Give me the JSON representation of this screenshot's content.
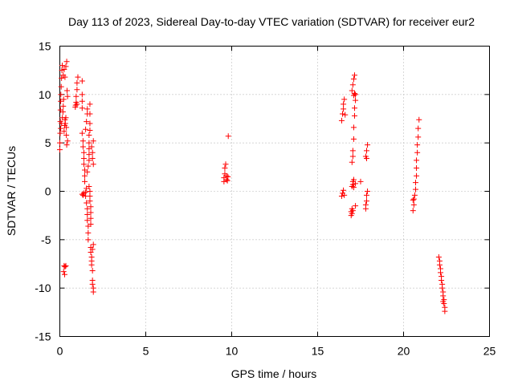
{
  "chart_data": {
    "type": "scatter",
    "title": "Day 113 of 2023, Sidereal Day-to-day VTEC variation (SDTVAR) for receiver eur2",
    "xlabel": "GPS time / hours",
    "ylabel": "SDTVAR / TECUs",
    "xlim": [
      0,
      25
    ],
    "ylim": [
      -15,
      15
    ],
    "x_ticks": [
      0,
      5,
      10,
      15,
      20,
      25
    ],
    "x_tick_labels": [
      "0",
      "5",
      "10",
      "15",
      "20",
      "25"
    ],
    "y_ticks": [
      -15,
      -10,
      -5,
      0,
      5,
      10,
      15
    ],
    "y_tick_labels": [
      "-15",
      "-10",
      "-5",
      "0",
      "5",
      "10",
      "15"
    ],
    "grid": true,
    "marker": "+",
    "color": "#ff0000",
    "series": [
      {
        "name": "eur2",
        "points": [
          [
            0.0,
            4.3
          ],
          [
            0.0,
            5.0
          ],
          [
            0.02,
            6.0
          ],
          [
            0.03,
            7.2
          ],
          [
            0.04,
            8.4
          ],
          [
            0.05,
            9.3
          ],
          [
            0.06,
            10.0
          ],
          [
            0.08,
            10.8
          ],
          [
            0.1,
            11.7
          ],
          [
            0.12,
            12.5
          ],
          [
            0.14,
            13.0
          ],
          [
            0.05,
            6.5
          ],
          [
            0.1,
            7.0
          ],
          [
            0.15,
            7.6
          ],
          [
            0.18,
            8.2
          ],
          [
            0.2,
            8.8
          ],
          [
            0.22,
            9.5
          ],
          [
            0.25,
            6.2
          ],
          [
            0.28,
            6.8
          ],
          [
            0.3,
            7.4
          ],
          [
            0.32,
            7.0
          ],
          [
            0.35,
            7.6
          ],
          [
            0.38,
            6.6
          ],
          [
            0.2,
            12.0
          ],
          [
            0.25,
            12.6
          ],
          [
            0.3,
            11.8
          ],
          [
            0.35,
            12.9
          ],
          [
            0.4,
            13.4
          ],
          [
            0.42,
            10.4
          ],
          [
            0.45,
            9.8
          ],
          [
            0.4,
            4.8
          ],
          [
            0.45,
            5.2
          ],
          [
            0.38,
            5.8
          ],
          [
            0.25,
            -7.7
          ],
          [
            0.3,
            -7.8
          ],
          [
            0.35,
            -7.7
          ],
          [
            0.22,
            -8.3
          ],
          [
            0.28,
            -8.6
          ],
          [
            0.9,
            8.7
          ],
          [
            0.95,
            9.2
          ],
          [
            0.95,
            9.8
          ],
          [
            1.0,
            10.5
          ],
          [
            1.0,
            11.2
          ],
          [
            1.05,
            11.8
          ],
          [
            1.0,
            9.0
          ],
          [
            0.92,
            8.9
          ],
          [
            1.3,
            11.4
          ],
          [
            1.3,
            10.0
          ],
          [
            1.3,
            9.3
          ],
          [
            1.3,
            8.6
          ],
          [
            1.3,
            6.0
          ],
          [
            1.35,
            5.2
          ],
          [
            1.35,
            4.6
          ],
          [
            1.4,
            4.0
          ],
          [
            1.4,
            3.4
          ],
          [
            1.4,
            2.8
          ],
          [
            1.45,
            2.2
          ],
          [
            1.45,
            1.6
          ],
          [
            1.45,
            1.0
          ],
          [
            1.4,
            -0.2
          ],
          [
            1.35,
            -0.4
          ],
          [
            1.3,
            -0.3
          ],
          [
            1.5,
            -0.5
          ],
          [
            1.5,
            -0.1
          ],
          [
            1.55,
            0.3
          ],
          [
            1.55,
            -1.2
          ],
          [
            1.6,
            -1.8
          ],
          [
            1.6,
            -2.4
          ],
          [
            1.6,
            -3.0
          ],
          [
            1.65,
            -3.6
          ],
          [
            1.65,
            -4.3
          ],
          [
            1.65,
            -5.0
          ],
          [
            1.5,
            6.4
          ],
          [
            1.55,
            7.2
          ],
          [
            1.6,
            8.0
          ],
          [
            1.6,
            8.5
          ],
          [
            1.6,
            2.0
          ],
          [
            1.65,
            2.6
          ],
          [
            1.7,
            3.2
          ],
          [
            1.7,
            3.8
          ],
          [
            1.7,
            4.4
          ],
          [
            1.7,
            5.0
          ],
          [
            1.7,
            5.8
          ],
          [
            1.75,
            9.0
          ],
          [
            1.75,
            8.0
          ],
          [
            1.75,
            7.0
          ],
          [
            1.75,
            6.3
          ],
          [
            1.7,
            0.5
          ],
          [
            1.75,
            0.0
          ],
          [
            1.75,
            -0.5
          ],
          [
            1.75,
            -1.0
          ],
          [
            1.8,
            -1.6
          ],
          [
            1.8,
            -2.2
          ],
          [
            1.8,
            -2.8
          ],
          [
            1.8,
            -3.4
          ],
          [
            1.8,
            -5.8
          ],
          [
            1.8,
            -6.3
          ],
          [
            1.85,
            -6.8
          ],
          [
            1.85,
            -7.2
          ],
          [
            1.85,
            -7.6
          ],
          [
            1.9,
            -8.2
          ],
          [
            1.9,
            -9.2
          ],
          [
            1.9,
            -9.6
          ],
          [
            1.95,
            -10.0
          ],
          [
            1.95,
            -10.4
          ],
          [
            1.95,
            -5.5
          ],
          [
            1.9,
            -6.0
          ],
          [
            1.85,
            4.6
          ],
          [
            1.9,
            4.0
          ],
          [
            1.9,
            3.4
          ],
          [
            1.95,
            2.8
          ],
          [
            1.95,
            5.2
          ],
          [
            9.55,
            1.0
          ],
          [
            9.55,
            1.4
          ],
          [
            9.6,
            1.8
          ],
          [
            9.6,
            2.4
          ],
          [
            9.65,
            2.8
          ],
          [
            9.7,
            1.2
          ],
          [
            9.7,
            1.6
          ],
          [
            9.75,
            1.1
          ],
          [
            9.78,
            1.5
          ],
          [
            9.8,
            5.7
          ],
          [
            16.4,
            7.3
          ],
          [
            16.45,
            8.0
          ],
          [
            16.5,
            8.5
          ],
          [
            16.5,
            9.0
          ],
          [
            16.55,
            9.5
          ],
          [
            16.6,
            7.9
          ],
          [
            16.4,
            -0.5
          ],
          [
            16.45,
            -0.2
          ],
          [
            16.5,
            0.1
          ],
          [
            16.55,
            -0.4
          ],
          [
            16.95,
            -2.1
          ],
          [
            16.95,
            -2.5
          ],
          [
            17.0,
            -2.3
          ],
          [
            17.05,
            -2.0
          ],
          [
            17.0,
            -1.8
          ],
          [
            17.0,
            0.5
          ],
          [
            17.05,
            1.0
          ],
          [
            17.05,
            0.7
          ],
          [
            17.1,
            1.2
          ],
          [
            17.1,
            0.4
          ],
          [
            17.0,
            3.0
          ],
          [
            17.05,
            3.6
          ],
          [
            17.05,
            4.2
          ],
          [
            17.1,
            5.4
          ],
          [
            17.1,
            6.6
          ],
          [
            17.15,
            7.8
          ],
          [
            17.15,
            8.6
          ],
          [
            17.2,
            9.4
          ],
          [
            17.1,
            9.9
          ],
          [
            17.15,
            10.1
          ],
          [
            17.0,
            10.4
          ],
          [
            17.05,
            11.0
          ],
          [
            17.1,
            11.6
          ],
          [
            17.15,
            12.0
          ],
          [
            17.2,
            10.0
          ],
          [
            17.5,
            1.0
          ],
          [
            17.2,
            0.8
          ],
          [
            17.2,
            -1.5
          ],
          [
            17.8,
            -1.8
          ],
          [
            17.8,
            -1.4
          ],
          [
            17.85,
            -1.0
          ],
          [
            17.85,
            -0.4
          ],
          [
            17.9,
            0.0
          ],
          [
            17.8,
            3.6
          ],
          [
            17.85,
            4.2
          ],
          [
            17.9,
            4.8
          ],
          [
            17.85,
            3.4
          ],
          [
            20.55,
            -2.0
          ],
          [
            20.6,
            -1.4
          ],
          [
            20.6,
            -0.8
          ],
          [
            20.65,
            -0.4
          ],
          [
            20.7,
            0.2
          ],
          [
            20.7,
            0.9
          ],
          [
            20.75,
            1.6
          ],
          [
            20.75,
            2.4
          ],
          [
            20.75,
            3.2
          ],
          [
            20.8,
            4.0
          ],
          [
            20.8,
            4.8
          ],
          [
            20.85,
            5.6
          ],
          [
            20.85,
            6.5
          ],
          [
            20.9,
            7.4
          ],
          [
            20.55,
            -0.9
          ],
          [
            22.05,
            -6.8
          ],
          [
            22.1,
            -7.2
          ],
          [
            22.1,
            -7.6
          ],
          [
            22.15,
            -8.0
          ],
          [
            22.15,
            -8.4
          ],
          [
            22.2,
            -8.8
          ],
          [
            22.2,
            -9.2
          ],
          [
            22.25,
            -9.6
          ],
          [
            22.25,
            -10.0
          ],
          [
            22.3,
            -10.4
          ],
          [
            22.3,
            -10.8
          ],
          [
            22.35,
            -11.2
          ],
          [
            22.35,
            -11.6
          ],
          [
            22.4,
            -12.0
          ],
          [
            22.4,
            -12.4
          ],
          [
            22.3,
            -11.4
          ]
        ]
      }
    ]
  }
}
